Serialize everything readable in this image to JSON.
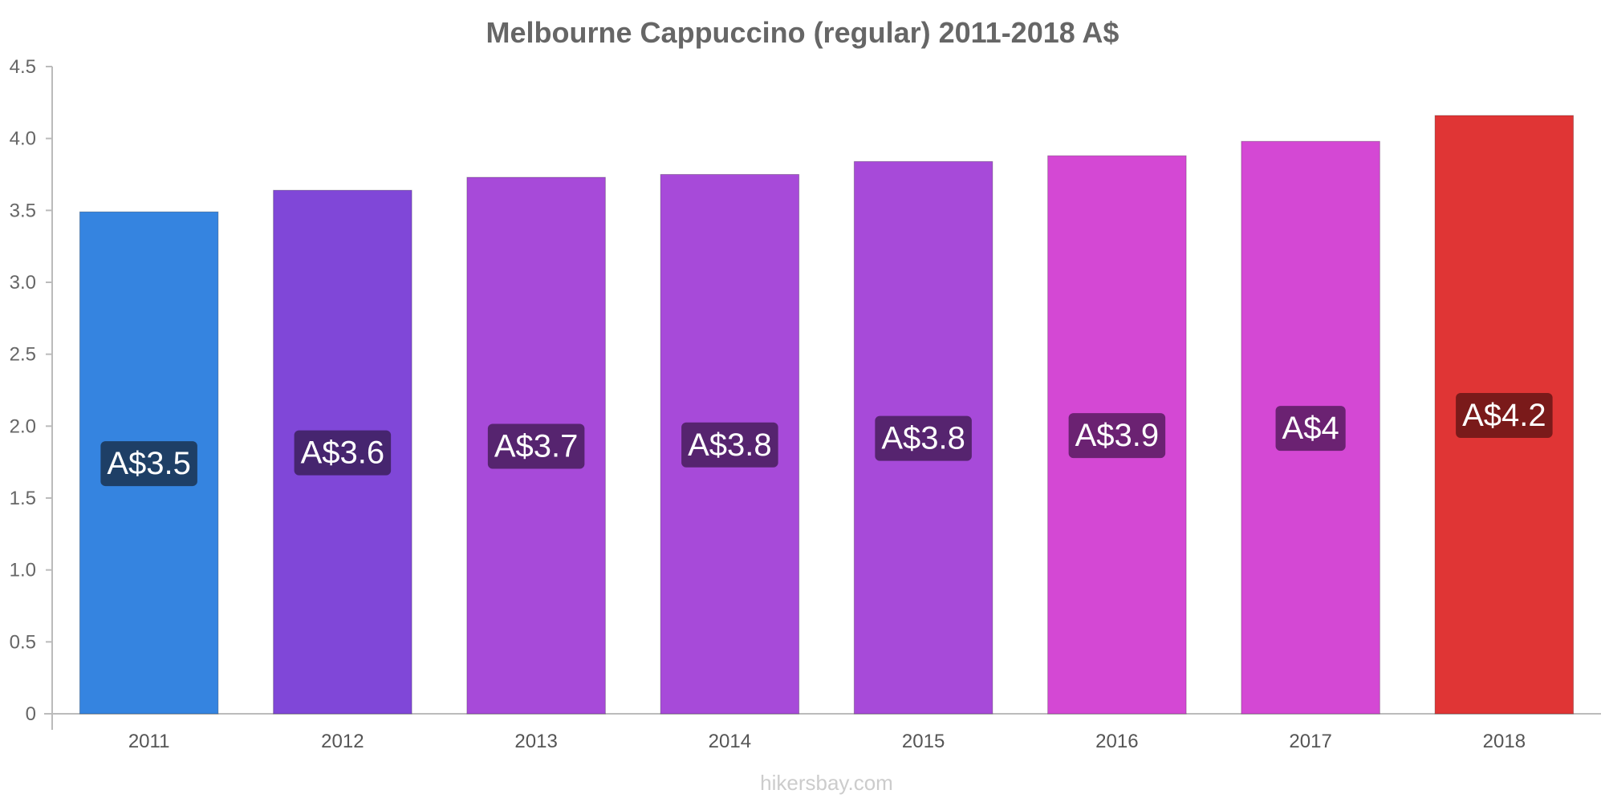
{
  "chart_data": {
    "type": "bar",
    "title": "Melbourne Cappuccino (regular) 2011-2018 A$",
    "categories": [
      "2011",
      "2012",
      "2013",
      "2014",
      "2015",
      "2016",
      "2017",
      "2018"
    ],
    "values": [
      3.49,
      3.64,
      3.73,
      3.75,
      3.84,
      3.88,
      3.98,
      4.16
    ],
    "value_labels": [
      "A$3.5",
      "A$3.6",
      "A$3.7",
      "A$3.8",
      "A$3.8",
      "A$3.9",
      "A$4",
      "A$4.2"
    ],
    "bar_colors": [
      "#3584e0",
      "#8047d8",
      "#a74ad9",
      "#a74ad9",
      "#a74ad9",
      "#d448d4",
      "#d448d4",
      "#e03535"
    ],
    "label_bg_colors": [
      "#1e3f66",
      "#46256f",
      "#56246f",
      "#56246f",
      "#56246f",
      "#6b2272",
      "#6b2272",
      "#7a1a1a"
    ],
    "ylim": [
      0,
      4.5
    ],
    "yticks": [
      0,
      0.5,
      1.0,
      1.5,
      2.0,
      2.5,
      3.0,
      3.5,
      4.0,
      4.5
    ],
    "ytick_labels": [
      "0",
      "0.5",
      "1.0",
      "1.5",
      "2.0",
      "2.5",
      "3.0",
      "3.5",
      "4.0",
      "4.5"
    ],
    "xlabel": "",
    "ylabel": "",
    "grid": false,
    "legend": "none"
  },
  "source": "hikersbay.com"
}
